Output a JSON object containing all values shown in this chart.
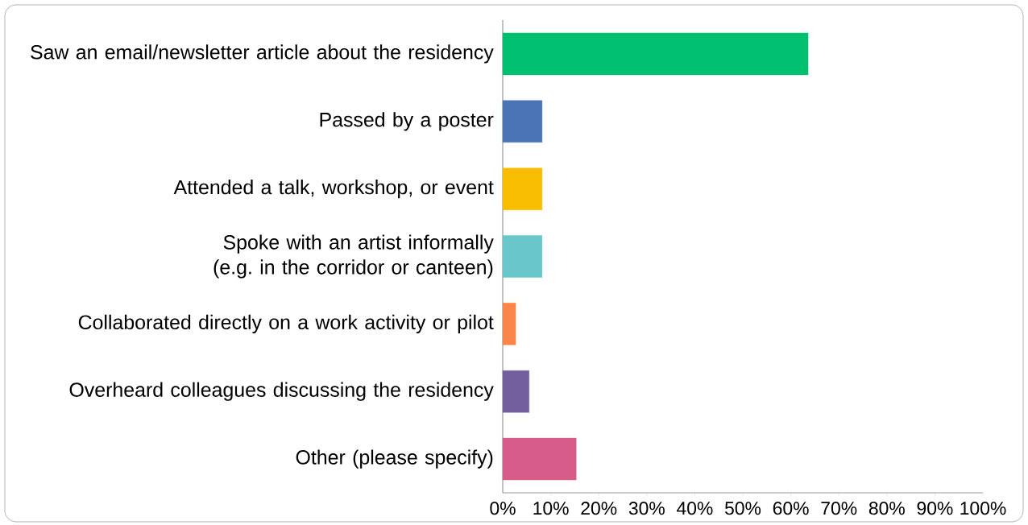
{
  "chart_data": {
    "type": "bar",
    "orientation": "horizontal",
    "categories": [
      "Saw an email/newsletter article about the residency",
      "Passed by a poster",
      "Attended a talk, workshop, or event",
      "Spoke with an artist informally (e.g. in the corridor or canteen)",
      "Collaborated directly on a work activity or pilot",
      "Overheard colleagues discussing the residency",
      "Other (please specify)"
    ],
    "values": [
      63.6,
      8.2,
      8.2,
      8.2,
      2.7,
      5.5,
      15.3
    ],
    "colors": [
      "#00bf6f",
      "#4a73b5",
      "#f8bd00",
      "#67c7c9",
      "#f9854a",
      "#735f9e",
      "#d85c8a"
    ],
    "xlim": [
      0,
      100
    ],
    "xticks": [
      {
        "value": 0,
        "label": "0%"
      },
      {
        "value": 10,
        "label": "10%"
      },
      {
        "value": 20,
        "label": "20%"
      },
      {
        "value": 30,
        "label": "30%"
      },
      {
        "value": 40,
        "label": "40%"
      },
      {
        "value": 50,
        "label": "50%"
      },
      {
        "value": 60,
        "label": "60%"
      },
      {
        "value": 70,
        "label": "70%"
      },
      {
        "value": 80,
        "label": "80%"
      },
      {
        "value": 90,
        "label": "90%"
      },
      {
        "value": 100,
        "label": "100%"
      }
    ],
    "grid": false
  }
}
